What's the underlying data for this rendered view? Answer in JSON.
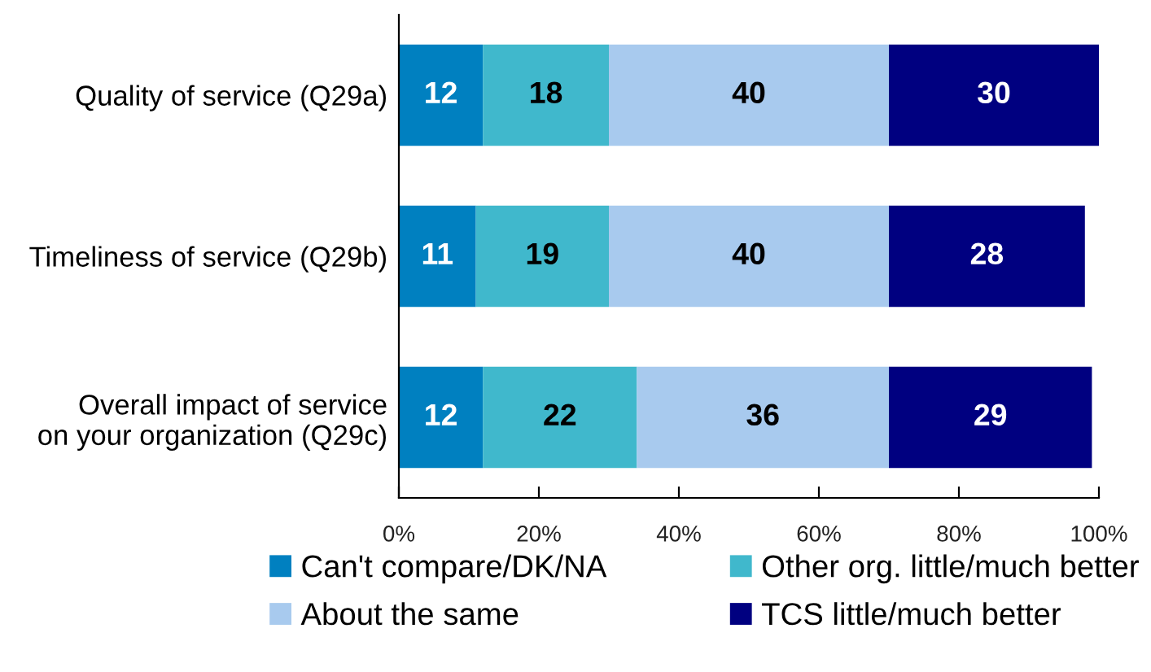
{
  "chart_data": {
    "type": "bar",
    "orientation": "horizontal",
    "stacked": true,
    "categories": [
      "Quality of service (Q29a)",
      "Timeliness of service (Q29b)",
      "Overall impact of service\non your organization (Q29c)"
    ],
    "series": [
      {
        "name": "Can't compare/DK/NA",
        "color": "#0080c0",
        "values": [
          12,
          11,
          12
        ]
      },
      {
        "name": "Other org. little/much better",
        "color": "#40b8cc",
        "values": [
          18,
          19,
          22
        ]
      },
      {
        "name": "About the same",
        "color": "#a8caee",
        "values": [
          40,
          40,
          36
        ]
      },
      {
        "name": "TCS little/much better",
        "color": "#000080",
        "values": [
          30,
          28,
          29
        ]
      }
    ],
    "xlim": [
      0,
      100
    ],
    "xticks": [
      {
        "value": 0,
        "label": "0%"
      },
      {
        "value": 20,
        "label": "20%"
      },
      {
        "value": 40,
        "label": "40%"
      },
      {
        "value": 60,
        "label": "60%"
      },
      {
        "value": 80,
        "label": "80%"
      },
      {
        "value": 100,
        "label": "100%"
      }
    ],
    "data_labels": true,
    "grid": false,
    "legend": "bottom"
  }
}
